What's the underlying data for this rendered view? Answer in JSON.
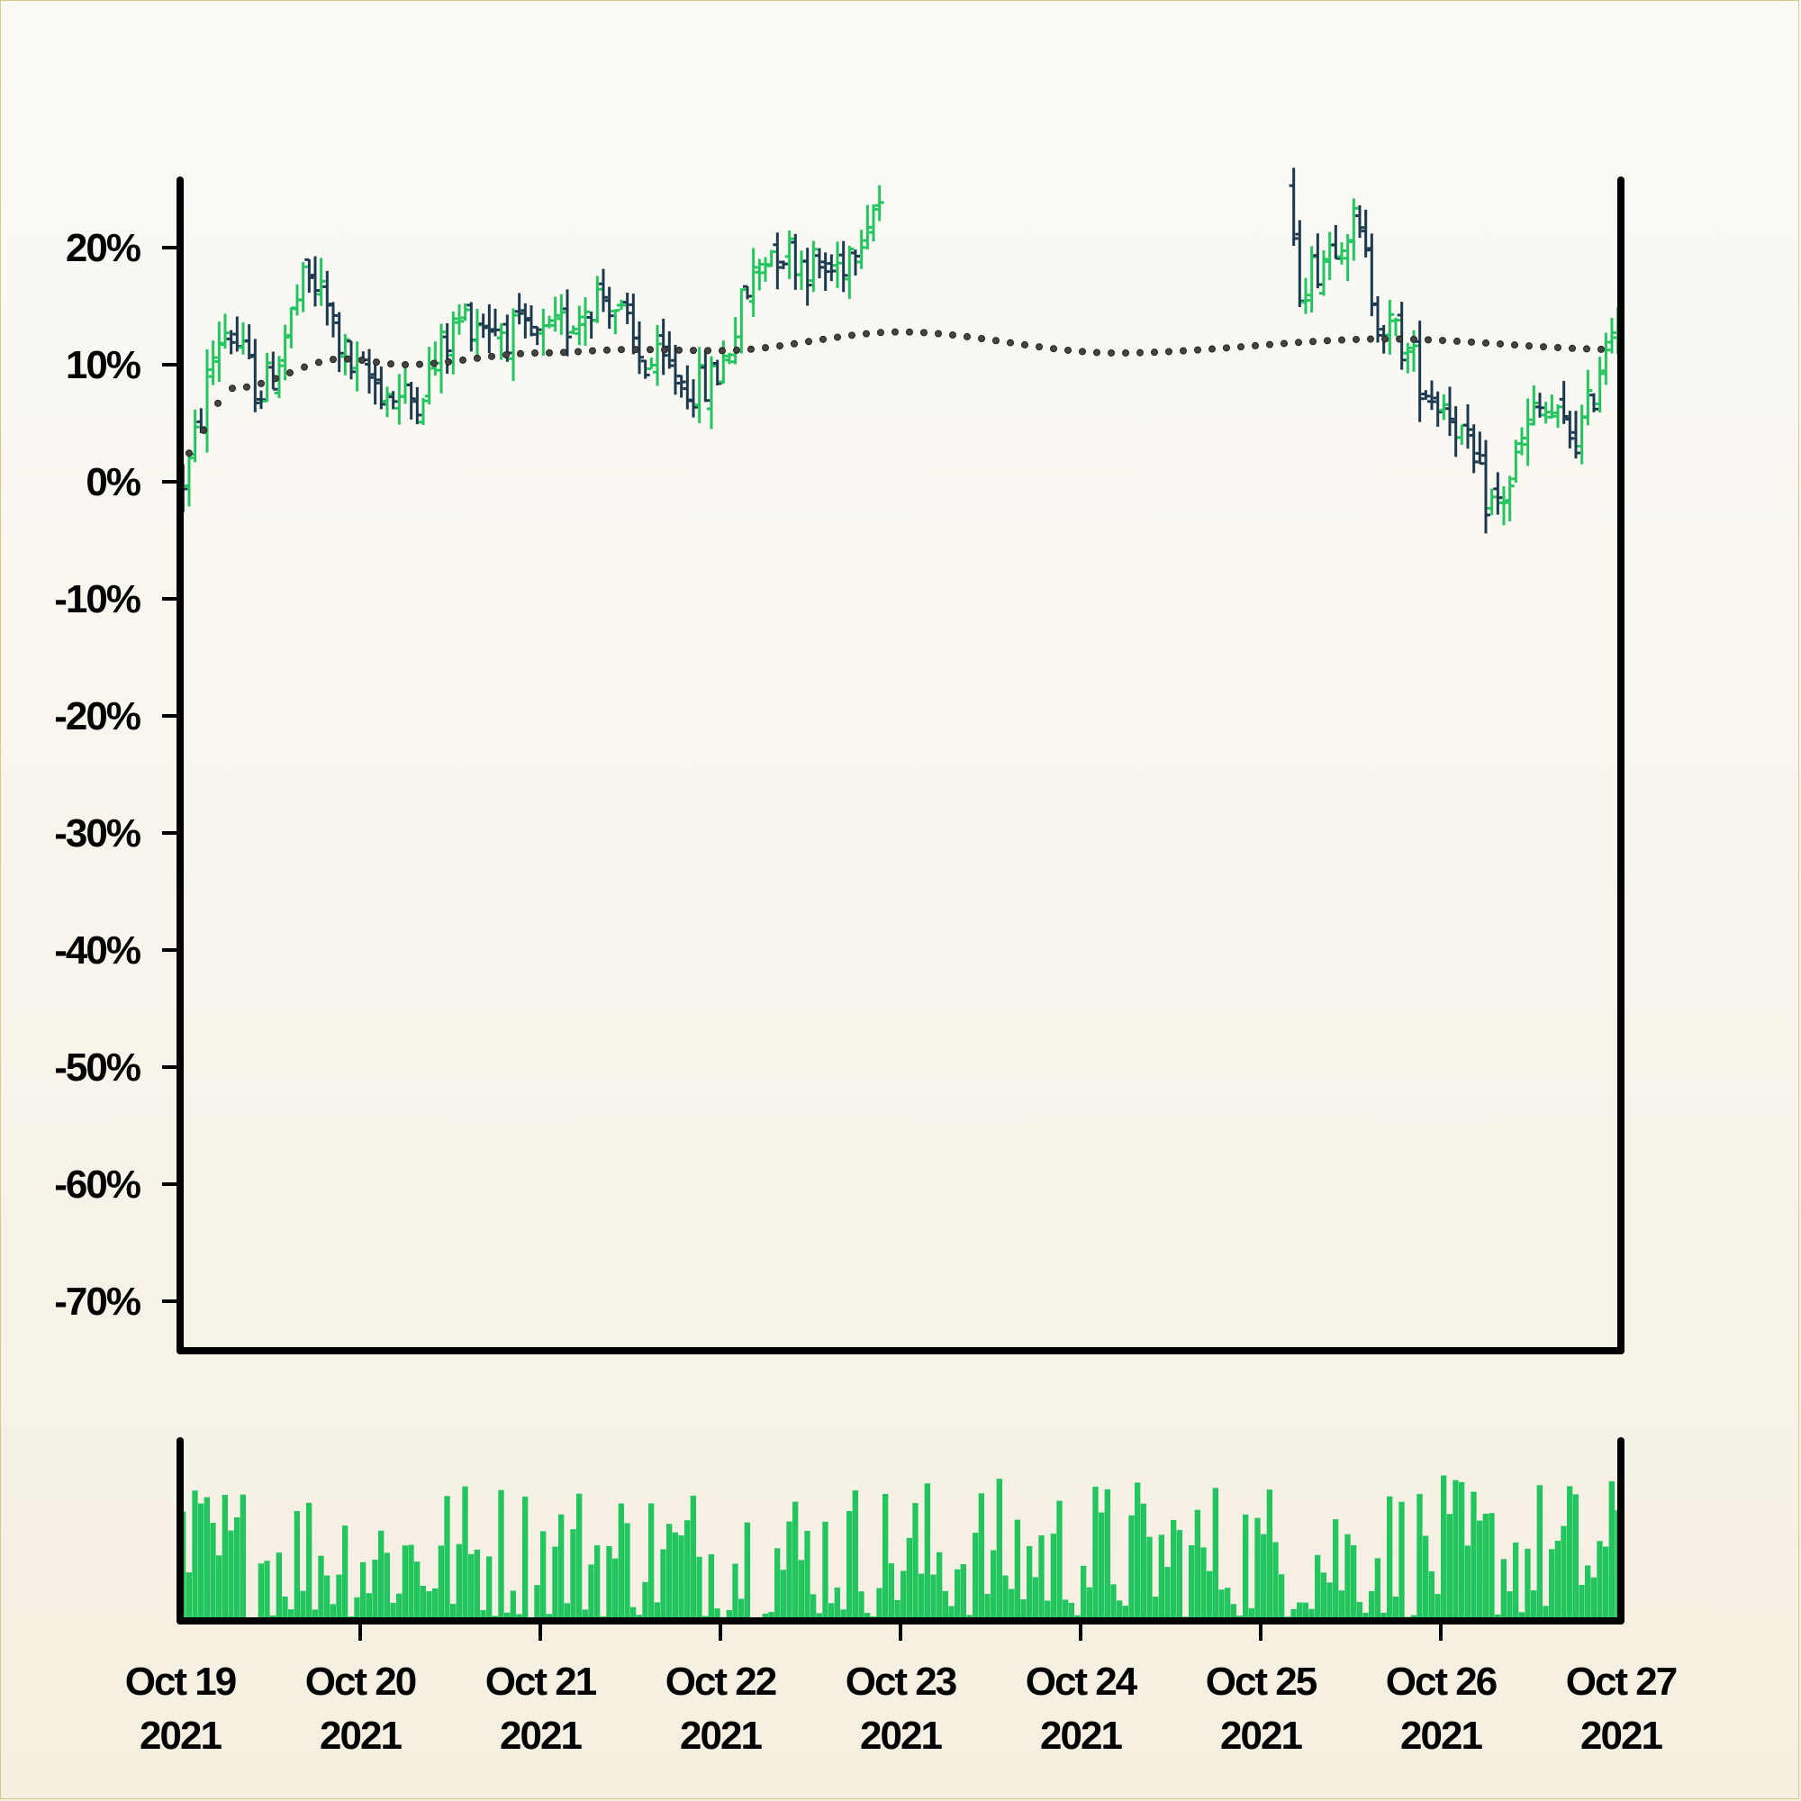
{
  "chart_data": {
    "type": "ohlc",
    "y_axis": {
      "ticks": [
        "20%",
        "10%",
        "0%",
        "-10%",
        "-20%",
        "-30%",
        "-40%",
        "-50%",
        "-60%",
        "-70%"
      ],
      "tick_values": [
        20,
        10,
        0,
        -10,
        -20,
        -30,
        -40,
        -50,
        -60,
        -70
      ],
      "range": [
        -75,
        26
      ]
    },
    "x_axis": {
      "tick_dates": [
        "Oct 19",
        "Oct 20",
        "Oct 21",
        "Oct 22",
        "Oct 23",
        "Oct 24",
        "Oct 25",
        "Oct 26",
        "Oct 27"
      ],
      "tick_years": [
        "2021",
        "2021",
        "2021",
        "2021",
        "2021",
        "2021",
        "2021",
        "2021",
        "2021"
      ],
      "range_days": [
        0,
        8
      ]
    },
    "bars_per_day": 30,
    "close_anchors_pct": [
      {
        "day": 0.0,
        "close": 0
      },
      {
        "day": 0.25,
        "close": 13
      },
      {
        "day": 0.45,
        "close": 8
      },
      {
        "day": 0.72,
        "close": 17
      },
      {
        "day": 1.0,
        "close": 9
      },
      {
        "day": 1.25,
        "close": 7
      },
      {
        "day": 1.6,
        "close": 14
      },
      {
        "day": 2.0,
        "close": 12
      },
      {
        "day": 2.35,
        "close": 16
      },
      {
        "day": 2.6,
        "close": 10
      },
      {
        "day": 2.9,
        "close": 8
      },
      {
        "day": 3.3,
        "close": 20
      },
      {
        "day": 3.6,
        "close": 18
      },
      {
        "day": 3.9,
        "close": 24
      },
      {
        "day": 4.0,
        "close": 16
      },
      {
        "day": 4.3,
        "close": 4
      },
      {
        "day": 4.55,
        "close": 7
      },
      {
        "day": 4.85,
        "close": 0
      },
      {
        "day": 5.15,
        "close": 5
      },
      {
        "day": 5.5,
        "close": 12
      },
      {
        "day": 5.85,
        "close": 20
      },
      {
        "day": 6.15,
        "close": 25
      },
      {
        "day": 6.2,
        "close": 17
      },
      {
        "day": 6.5,
        "close": 22
      },
      {
        "day": 6.7,
        "close": 13
      },
      {
        "day": 7.0,
        "close": 7
      },
      {
        "day": 7.3,
        "close": -2
      },
      {
        "day": 7.55,
        "close": 6
      },
      {
        "day": 7.75,
        "close": 4
      },
      {
        "day": 8.0,
        "close": 15
      }
    ],
    "moving_average_anchors_pct": [
      {
        "day": 0.0,
        "value": 2
      },
      {
        "day": 0.3,
        "value": 8
      },
      {
        "day": 0.9,
        "value": 10.5
      },
      {
        "day": 1.25,
        "value": 10
      },
      {
        "day": 2.0,
        "value": 11
      },
      {
        "day": 2.5,
        "value": 11.3
      },
      {
        "day": 3.0,
        "value": 11.2
      },
      {
        "day": 4.0,
        "value": 12.8
      },
      {
        "day": 5.2,
        "value": 11
      },
      {
        "day": 6.7,
        "value": 12.2
      },
      {
        "day": 8.0,
        "value": 11.3
      }
    ],
    "gap_after_day": 3.9,
    "gap_resume_day": 6.18,
    "volume_relative_range": [
      0.02,
      1.0
    ],
    "colors": {
      "up": "#22c55e",
      "down": "#1c3a4f",
      "moving_average": "#444444",
      "volume": "#22c55e",
      "axis": "#000000"
    }
  }
}
